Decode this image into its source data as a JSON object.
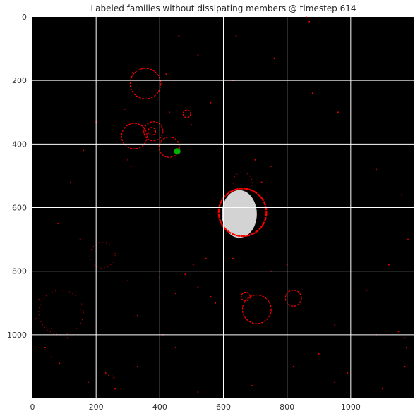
{
  "chart_data": {
    "type": "heatmap",
    "title": "Labeled families without dissipating members @ timestep 614",
    "xlabel": "",
    "ylabel": "",
    "xlim": [
      0,
      1200
    ],
    "ylim": [
      1200,
      0
    ],
    "x_ticks": [
      0,
      200,
      400,
      600,
      800,
      1000
    ],
    "y_ticks": [
      0,
      200,
      400,
      600,
      800,
      1000
    ],
    "grid": true,
    "colors": {
      "background": "#000000",
      "family_outline": "#ff0000",
      "family_fill": "#d3d3d3",
      "highlight": "#00b000",
      "grid": "#ffffff"
    },
    "red_rings": [
      {
        "cx": 355,
        "cy": 210,
        "r": 48
      },
      {
        "cx": 320,
        "cy": 375,
        "r": 40
      },
      {
        "cx": 380,
        "cy": 360,
        "r": 30
      },
      {
        "cx": 485,
        "cy": 305,
        "r": 12
      },
      {
        "cx": 375,
        "cy": 360,
        "r": 12
      },
      {
        "cx": 430,
        "cy": 410,
        "r": 32
      },
      {
        "cx": 660,
        "cy": 615,
        "r": 75
      },
      {
        "cx": 705,
        "cy": 920,
        "r": 45
      },
      {
        "cx": 670,
        "cy": 880,
        "r": 14
      },
      {
        "cx": 820,
        "cy": 885,
        "r": 25
      }
    ],
    "faint_rings": [
      {
        "cx": 90,
        "cy": 930,
        "r": 70
      },
      {
        "cx": 220,
        "cy": 750,
        "r": 40
      },
      {
        "cx": 660,
        "cy": 520,
        "r": 30
      }
    ],
    "gray_blob": {
      "cx": 650,
      "cy": 620,
      "rx": 55,
      "ry": 75
    },
    "green_blob": {
      "cx": 455,
      "cy": 423,
      "r": 10
    },
    "scatter_points": [
      [
        40,
        1040
      ],
      [
        60,
        1070
      ],
      [
        85,
        1090
      ],
      [
        250,
        1130
      ],
      [
        240,
        1128
      ],
      [
        256,
        1135
      ],
      [
        230,
        1120
      ],
      [
        175,
        1150
      ],
      [
        300,
        830
      ],
      [
        330,
        940
      ],
      [
        400,
        820
      ],
      [
        520,
        850
      ],
      [
        560,
        880
      ],
      [
        575,
        900
      ],
      [
        545,
        760
      ],
      [
        860,
        0
      ],
      [
        870,
        15
      ],
      [
        1080,
        1000
      ],
      [
        1150,
        990
      ],
      [
        1170,
        1010
      ],
      [
        1175,
        1040
      ],
      [
        1170,
        1100
      ],
      [
        990,
        1120
      ],
      [
        950,
        1150
      ],
      [
        1100,
        1170
      ],
      [
        300,
        450
      ],
      [
        310,
        470
      ],
      [
        290,
        290
      ],
      [
        430,
        300
      ],
      [
        420,
        180
      ],
      [
        315,
        175
      ],
      [
        600,
        230
      ],
      [
        630,
        200
      ],
      [
        560,
        270
      ],
      [
        500,
        340
      ],
      [
        740,
        560
      ],
      [
        720,
        520
      ],
      [
        750,
        470
      ],
      [
        700,
        450
      ],
      [
        630,
        760
      ],
      [
        750,
        800
      ],
      [
        800,
        780
      ],
      [
        450,
        870
      ],
      [
        480,
        810
      ],
      [
        505,
        780
      ],
      [
        20,
        890
      ],
      [
        10,
        950
      ],
      [
        110,
        1010
      ],
      [
        150,
        920
      ],
      [
        60,
        980
      ],
      [
        260,
        1170
      ],
      [
        330,
        1100
      ],
      [
        410,
        1000
      ],
      [
        450,
        1040
      ],
      [
        520,
        1180
      ],
      [
        690,
        1160
      ],
      [
        820,
        1100
      ],
      [
        900,
        1060
      ],
      [
        950,
        970
      ],
      [
        1050,
        860
      ],
      [
        1120,
        780
      ],
      [
        1180,
        700
      ],
      [
        1160,
        560
      ],
      [
        1080,
        480
      ],
      [
        960,
        300
      ],
      [
        880,
        240
      ],
      [
        760,
        130
      ],
      [
        640,
        60
      ],
      [
        520,
        120
      ],
      [
        460,
        60
      ],
      [
        200,
        330
      ],
      [
        160,
        420
      ],
      [
        120,
        520
      ],
      [
        80,
        650
      ],
      [
        150,
        700
      ]
    ]
  }
}
